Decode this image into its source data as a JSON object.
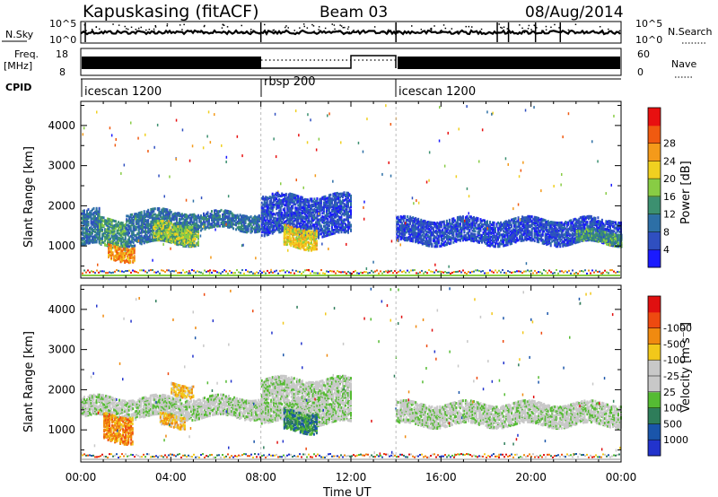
{
  "header": {
    "site": "Kapuskasing (fitACF)",
    "beam": "Beam 03",
    "date": "08/Aug/2014"
  },
  "status_panels": {
    "nsky_label": "N.Sky",
    "nsky_ticks": [
      "10^5",
      "10^0"
    ],
    "nsearch_label": "N.Search",
    "nsearch_ticks": [
      "10^5",
      "10^0"
    ],
    "freq_label_1": "Freq.",
    "freq_label_2": "[MHz]",
    "freq_ticks": [
      "18",
      "8"
    ],
    "nave_label": "Nave",
    "nave_ticks": [
      "60",
      "0"
    ],
    "cpid_label": "CPID",
    "cpid_segments": [
      {
        "label": "icescan 1200",
        "start_hour": 0,
        "end_hour": 8
      },
      {
        "label": "rbsp 200",
        "start_hour": 8,
        "end_hour": 14
      },
      {
        "label": "icescan 1200",
        "start_hour": 14,
        "end_hour": 24
      }
    ]
  },
  "chart_data": [
    {
      "type": "heatmap",
      "name": "power",
      "ylabel": "Slant Range [km]",
      "ylim": [
        200,
        4600
      ],
      "yticks": [
        1000,
        2000,
        3000,
        4000
      ],
      "xlim_hours": [
        0,
        24
      ],
      "colorbar_label": "Power [dB]",
      "colorbar_levels": [
        {
          "label": "",
          "color": "#1a1aff"
        },
        {
          "label": "4",
          "color": "#2f4fc0"
        },
        {
          "label": "8",
          "color": "#2d6fa6"
        },
        {
          "label": "12",
          "color": "#3c9070"
        },
        {
          "label": "16",
          "color": "#88cc44"
        },
        {
          "label": "20",
          "color": "#f0d020"
        },
        {
          "label": "24",
          "color": "#f49a1a"
        },
        {
          "label": "28",
          "color": "#f05a10"
        },
        {
          "label": "",
          "color": "#e81010"
        }
      ],
      "echo_regions": [
        {
          "start_hour": 0.0,
          "end_hour": 0.8,
          "range_min": 1050,
          "range_max": 1900,
          "level": 2
        },
        {
          "start_hour": 0.8,
          "end_hour": 2.0,
          "range_min": 1000,
          "range_max": 1700,
          "level": 3
        },
        {
          "start_hour": 1.2,
          "end_hour": 2.4,
          "range_min": 700,
          "range_max": 1050,
          "level": 6
        },
        {
          "start_hour": 2.0,
          "end_hour": 5.0,
          "range_min": 1100,
          "range_max": 1900,
          "level": 2
        },
        {
          "start_hour": 3.2,
          "end_hour": 5.2,
          "range_min": 1100,
          "range_max": 1600,
          "level": 4
        },
        {
          "start_hour": 5.0,
          "end_hour": 8.0,
          "range_min": 1450,
          "range_max": 1850,
          "level": 2
        },
        {
          "start_hour": 8.0,
          "end_hour": 12.0,
          "range_min": 1300,
          "range_max": 2300,
          "level": 1
        },
        {
          "start_hour": 9.0,
          "end_hour": 10.5,
          "range_min": 1000,
          "range_max": 1500,
          "level": 5
        },
        {
          "start_hour": 14.0,
          "end_hour": 24.0,
          "range_min": 1100,
          "range_max": 1700,
          "level": 1
        },
        {
          "start_hour": 22.0,
          "end_hour": 24.0,
          "range_min": 1100,
          "range_max": 1400,
          "level": 3
        }
      ]
    },
    {
      "type": "heatmap",
      "name": "velocity",
      "ylabel": "Slant Range [km]",
      "ylim": [
        200,
        4600
      ],
      "yticks": [
        1000,
        2000,
        3000,
        4000
      ],
      "xlim_hours": [
        0,
        24
      ],
      "xticks": [
        "00:00",
        "04:00",
        "08:00",
        "12:00",
        "16:00",
        "20:00",
        "00:00"
      ],
      "xlabel": "Time UT",
      "colorbar_label": "Velocity [m s⁻¹]",
      "colorbar_levels": [
        {
          "label": "",
          "color": "#2233cc"
        },
        {
          "label": "1000",
          "color": "#1a55aa"
        },
        {
          "label": "500",
          "color": "#2e7d5a"
        },
        {
          "label": "100",
          "color": "#55bb33"
        },
        {
          "label": "25",
          "color": "#c8c8c8"
        },
        {
          "label": "-25",
          "color": "#c8c8c8"
        },
        {
          "label": "-100",
          "color": "#f2c81a"
        },
        {
          "label": "-500",
          "color": "#f08a10"
        },
        {
          "label": "-1000",
          "color": "#ee4a10"
        },
        {
          "label": "",
          "color": "#e01010"
        }
      ],
      "echo_regions": [
        {
          "start_hour": 0.0,
          "end_hour": 8.0,
          "range_min": 1350,
          "range_max": 1850,
          "level": 4
        },
        {
          "start_hour": 1.0,
          "end_hour": 2.3,
          "range_min": 750,
          "range_max": 1400,
          "level": 7
        },
        {
          "start_hour": 3.5,
          "end_hour": 4.6,
          "range_min": 1100,
          "range_max": 1400,
          "level": 6
        },
        {
          "start_hour": 4.0,
          "end_hour": 5.0,
          "range_min": 1900,
          "range_max": 2200,
          "level": 6
        },
        {
          "start_hour": 8.0,
          "end_hour": 12.0,
          "range_min": 1200,
          "range_max": 2300,
          "level": 4
        },
        {
          "start_hour": 9.0,
          "end_hour": 10.5,
          "range_min": 1000,
          "range_max": 1500,
          "level": 2
        },
        {
          "start_hour": 14.0,
          "end_hour": 24.0,
          "range_min": 1150,
          "range_max": 1700,
          "level": 4
        }
      ]
    }
  ]
}
